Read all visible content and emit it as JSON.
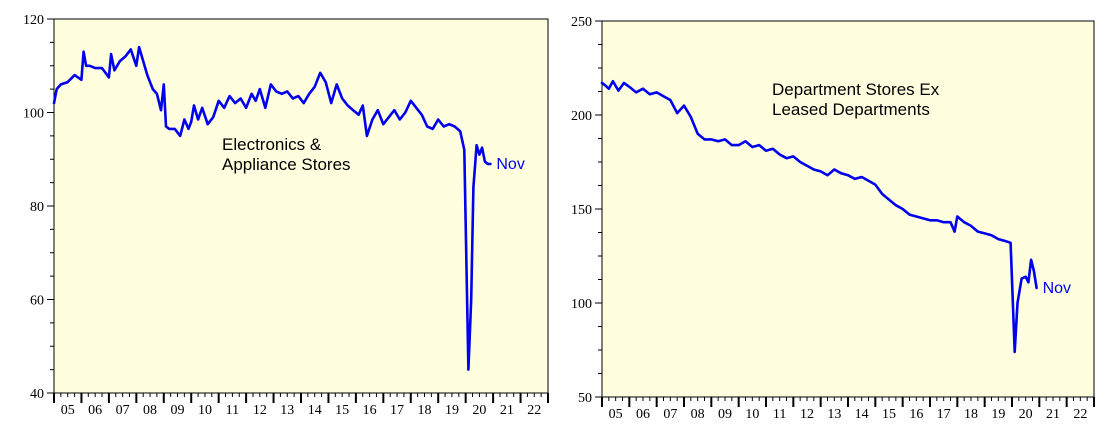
{
  "chart_data": [
    {
      "type": "line",
      "title_lines": [
        "Electronics &",
        "Appliance Stores"
      ],
      "end_label": "Nov",
      "line_color": "#0000ee",
      "background": "#ffffe0",
      "ylim": [
        40,
        120
      ],
      "yticks": [
        "40",
        "60",
        "80",
        "100",
        "120"
      ],
      "ytick_values": [
        40,
        60,
        80,
        100,
        120
      ],
      "xlim": [
        2005.0,
        2023.0
      ],
      "xticks": [
        "05",
        "06",
        "07",
        "08",
        "09",
        "10",
        "11",
        "12",
        "13",
        "14",
        "15",
        "16",
        "17",
        "18",
        "19",
        "20",
        "21",
        "22"
      ],
      "series": [
        {
          "x": [
            2005.0,
            2005.1,
            2005.25,
            2005.5,
            2005.75,
            2006.0,
            2006.08,
            2006.17,
            2006.3,
            2006.5,
            2006.75,
            2007.0,
            2007.08,
            2007.2,
            2007.4,
            2007.6,
            2007.8,
            2008.0,
            2008.1,
            2008.25,
            2008.4,
            2008.6,
            2008.75,
            2008.9,
            2009.0,
            2009.08,
            2009.2,
            2009.4,
            2009.6,
            2009.75,
            2009.9,
            2010.0,
            2010.1,
            2010.25,
            2010.4,
            2010.6,
            2010.8,
            2011.0,
            2011.2,
            2011.4,
            2011.6,
            2011.8,
            2012.0,
            2012.2,
            2012.35,
            2012.5,
            2012.7,
            2012.9,
            2013.1,
            2013.3,
            2013.5,
            2013.7,
            2013.9,
            2014.1,
            2014.3,
            2014.5,
            2014.7,
            2014.9,
            2015.1,
            2015.3,
            2015.5,
            2015.7,
            2015.9,
            2016.1,
            2016.25,
            2016.4,
            2016.6,
            2016.8,
            2017.0,
            2017.2,
            2017.4,
            2017.6,
            2017.8,
            2018.0,
            2018.2,
            2018.4,
            2018.6,
            2018.8,
            2019.0,
            2019.2,
            2019.4,
            2019.6,
            2019.8,
            2019.95,
            2020.1,
            2020.2,
            2020.28,
            2020.4,
            2020.5,
            2020.6,
            2020.7,
            2020.8,
            2020.9
          ],
          "values": [
            102,
            105,
            106,
            106.5,
            108,
            107,
            113,
            110,
            110,
            109.5,
            109.5,
            107.5,
            112.5,
            109,
            111,
            112,
            113.5,
            110,
            114,
            111,
            108,
            105,
            104,
            100.5,
            106,
            97,
            96.5,
            96.5,
            95,
            98.5,
            96.5,
            98,
            101.5,
            98.5,
            101,
            97.5,
            99,
            102.5,
            101,
            103.5,
            102,
            103,
            101,
            104,
            102.5,
            105,
            101,
            106,
            104.5,
            104,
            104.5,
            103,
            103.5,
            102,
            104,
            105.5,
            108.5,
            106.5,
            102,
            106,
            103,
            101.5,
            100.5,
            99.5,
            101.5,
            95,
            98.5,
            100.5,
            97.5,
            99,
            100.5,
            98.5,
            100,
            102.5,
            101,
            99.5,
            97,
            96.5,
            98.5,
            97,
            97.5,
            97,
            96,
            92,
            45,
            60,
            84,
            93,
            91,
            92.5,
            89.5,
            89,
            89
          ]
        }
      ]
    },
    {
      "type": "line",
      "title_lines": [
        "Department Stores Ex",
        "Leased Departments"
      ],
      "end_label": "Nov",
      "line_color": "#0000ee",
      "background": "#ffffe0",
      "ylim": [
        50,
        250
      ],
      "yticks": [
        "50",
        "100",
        "150",
        "200",
        "250"
      ],
      "ytick_values": [
        50,
        100,
        150,
        200,
        250
      ],
      "xlim": [
        2005.0,
        2023.0
      ],
      "xticks": [
        "05",
        "06",
        "07",
        "08",
        "09",
        "10",
        "11",
        "12",
        "13",
        "14",
        "15",
        "16",
        "17",
        "18",
        "19",
        "20",
        "21",
        "22"
      ],
      "series": [
        {
          "x": [
            2005.0,
            2005.1,
            2005.25,
            2005.4,
            2005.6,
            2005.8,
            2006.0,
            2006.25,
            2006.5,
            2006.75,
            2007.0,
            2007.25,
            2007.5,
            2007.75,
            2008.0,
            2008.25,
            2008.5,
            2008.75,
            2009.0,
            2009.25,
            2009.5,
            2009.75,
            2010.0,
            2010.25,
            2010.5,
            2010.75,
            2011.0,
            2011.25,
            2011.5,
            2011.75,
            2012.0,
            2012.25,
            2012.5,
            2012.75,
            2013.0,
            2013.25,
            2013.5,
            2013.75,
            2014.0,
            2014.25,
            2014.5,
            2014.75,
            2015.0,
            2015.25,
            2015.5,
            2015.75,
            2016.0,
            2016.25,
            2016.5,
            2016.75,
            2017.0,
            2017.25,
            2017.5,
            2017.75,
            2017.9,
            2018.0,
            2018.25,
            2018.5,
            2018.75,
            2019.0,
            2019.25,
            2019.5,
            2019.75,
            2019.95,
            2020.1,
            2020.2,
            2020.35,
            2020.5,
            2020.6,
            2020.7,
            2020.8,
            2020.9
          ],
          "values": [
            217,
            216,
            214,
            218,
            213,
            217,
            215,
            212,
            214,
            211,
            212,
            210,
            208,
            201,
            205,
            199,
            190,
            187,
            187,
            186,
            187,
            184,
            184,
            186,
            183,
            184,
            181,
            182,
            179,
            177,
            178,
            175,
            173,
            171,
            170,
            168,
            171,
            169,
            168,
            166,
            167,
            165,
            163,
            158,
            155,
            152,
            150,
            147,
            146,
            145,
            144,
            144,
            143,
            143,
            138,
            146,
            143,
            141,
            138,
            137,
            136,
            134,
            133,
            132,
            74,
            100,
            113,
            114,
            111,
            123,
            117,
            108
          ]
        }
      ]
    }
  ]
}
